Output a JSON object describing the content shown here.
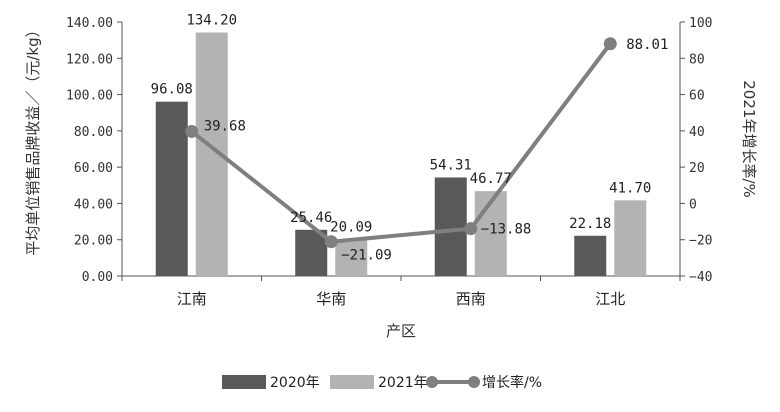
{
  "chart_data": {
    "type": "bar",
    "categories": [
      "江南",
      "华南",
      "西南",
      "江北"
    ],
    "xlabel": "产区",
    "ylabel_left": "平均单位销售品牌收益／（元/kg）",
    "ylabel_right": "2021年增长率/%",
    "ylim_left": [
      0,
      140
    ],
    "yticks_left": [
      "0.00",
      "20.00",
      "40.00",
      "60.00",
      "80.00",
      "100.00",
      "120.00",
      "140.00"
    ],
    "ylim_right": [
      -40,
      100
    ],
    "yticks_right": [
      "−40",
      "−20",
      "0",
      "20",
      "40",
      "60",
      "80",
      "100"
    ],
    "series": [
      {
        "name": "2020年",
        "kind": "bar",
        "color": "#595959",
        "values": [
          96.08,
          25.46,
          54.31,
          22.18
        ],
        "labels": [
          "96.08",
          "25.46",
          "54.31",
          "22.18"
        ]
      },
      {
        "name": "2021年",
        "kind": "bar",
        "color": "#b3b3b3",
        "values": [
          134.2,
          20.09,
          46.77,
          41.7
        ],
        "labels": [
          "134.20",
          "20.09",
          "46.77",
          "41.70"
        ]
      },
      {
        "name": "增长率/%",
        "kind": "line",
        "axis": "right",
        "color": "#7f7f7f",
        "values": [
          39.68,
          -21.09,
          -13.88,
          88.01
        ],
        "labels": [
          "39.68",
          "−21.09",
          "−13.88",
          "88.01"
        ]
      }
    ],
    "grid": false,
    "legend_position": "bottom"
  }
}
